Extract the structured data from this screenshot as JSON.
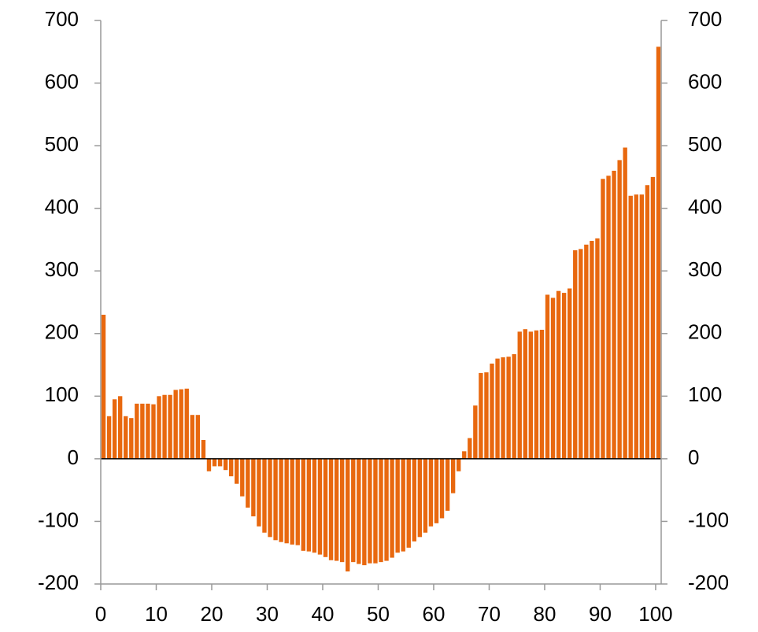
{
  "chart_data": {
    "type": "bar",
    "color": "#e8680f",
    "x": [
      0,
      1,
      2,
      3,
      4,
      5,
      6,
      7,
      8,
      9,
      10,
      11,
      12,
      13,
      14,
      15,
      16,
      17,
      18,
      19,
      20,
      21,
      22,
      23,
      24,
      25,
      26,
      27,
      28,
      29,
      30,
      31,
      32,
      33,
      34,
      35,
      36,
      37,
      38,
      39,
      40,
      41,
      42,
      43,
      44,
      45,
      46,
      47,
      48,
      49,
      50,
      51,
      52,
      53,
      54,
      55,
      56,
      57,
      58,
      59,
      60,
      61,
      62,
      63,
      64,
      65,
      66,
      67,
      68,
      69,
      70,
      71,
      72,
      73,
      74,
      75,
      76,
      77,
      78,
      79,
      80,
      81,
      82,
      83,
      84,
      85,
      86,
      87,
      88,
      89,
      90,
      91,
      92,
      93,
      94,
      95,
      96,
      97,
      98,
      99,
      100
    ],
    "values": [
      230,
      68,
      95,
      100,
      68,
      65,
      88,
      88,
      88,
      87,
      100,
      102,
      102,
      110,
      111,
      112,
      70,
      70,
      30,
      -20,
      -12,
      -12,
      -18,
      -28,
      -40,
      -60,
      -78,
      -92,
      -108,
      -118,
      -125,
      -130,
      -133,
      -135,
      -137,
      -138,
      -147,
      -148,
      -150,
      -153,
      -157,
      -162,
      -163,
      -165,
      -180,
      -165,
      -168,
      -170,
      -167,
      -167,
      -165,
      -163,
      -158,
      -150,
      -148,
      -142,
      -132,
      -125,
      -118,
      -108,
      -103,
      -95,
      -83,
      -55,
      -20,
      12,
      33,
      85,
      137,
      138,
      152,
      160,
      162,
      163,
      167,
      203,
      207,
      203,
      205,
      206,
      262,
      257,
      268,
      265,
      272,
      333,
      335,
      342,
      348,
      352,
      447,
      452,
      460,
      477,
      497,
      420,
      422,
      422,
      437,
      450,
      658
    ],
    "xlim": [
      0,
      101
    ],
    "xticks": [
      0,
      10,
      20,
      30,
      40,
      50,
      60,
      70,
      80,
      90,
      100
    ],
    "ylim": [
      -200,
      700
    ],
    "yticks": [
      -200,
      -100,
      0,
      100,
      200,
      300,
      400,
      500,
      600,
      700
    ],
    "y2lim": [
      -200,
      700
    ],
    "y2ticks": [
      -200,
      -100,
      0,
      100,
      200,
      300,
      400,
      500,
      600,
      700
    ]
  }
}
